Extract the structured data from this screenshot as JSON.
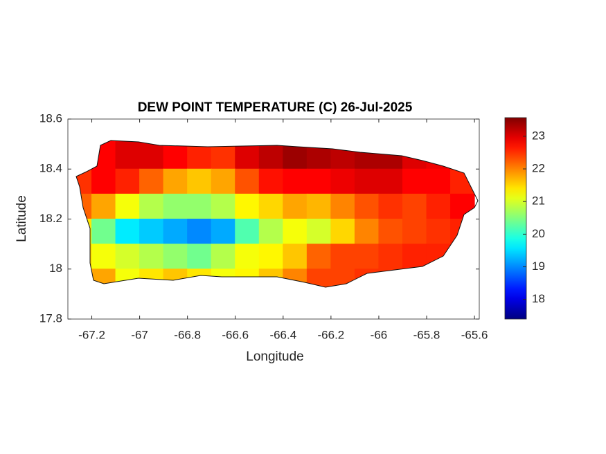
{
  "chart_data": {
    "type": "heatmap",
    "title": "DEW POINT TEMPERATURE (C) 26-Jul-2025",
    "xlabel": "Longitude",
    "ylabel": "Latitude",
    "xlim": [
      -67.3,
      -65.58
    ],
    "ylim": [
      17.8,
      18.6
    ],
    "xticks": [
      -67.2,
      -67,
      -66.8,
      -66.6,
      -66.4,
      -66.2,
      -66,
      -65.8,
      -65.6
    ],
    "yticks": [
      17.8,
      18,
      18.2,
      18.4,
      18.6
    ],
    "x": [
      -67.25,
      -67.15,
      -67.05,
      -66.95,
      -66.85,
      -66.75,
      -66.65,
      -66.55,
      -66.45,
      -66.35,
      -66.25,
      -66.15,
      -66.05,
      -65.95,
      -65.85,
      -65.75,
      -65.65
    ],
    "y": [
      18.45,
      18.35,
      18.25,
      18.15,
      18.05,
      17.95
    ],
    "values": [
      [
        null,
        22.8,
        23,
        23,
        22.8,
        22.6,
        22.5,
        23,
        23.2,
        23.4,
        23.3,
        23.2,
        23.3,
        23.3,
        23,
        22.9,
        22.8
      ],
      [
        22.5,
        22.8,
        22.6,
        22.2,
        21.8,
        21.6,
        21.8,
        22.3,
        22.7,
        22.8,
        22.8,
        22.9,
        23,
        23,
        22.8,
        22.8,
        22.6
      ],
      [
        22.2,
        21.8,
        21.2,
        20.8,
        20.6,
        20.6,
        20.8,
        21.3,
        21.5,
        21.8,
        21.7,
        22,
        22.3,
        22.5,
        22.4,
        22.6,
        22.8
      ],
      [
        21.4,
        20.4,
        19.6,
        19.4,
        19.2,
        19,
        19.2,
        20.2,
        20.8,
        21.2,
        21,
        21.5,
        22,
        22.3,
        22.4,
        22.5,
        22.6
      ],
      [
        21.6,
        21.2,
        21,
        20.8,
        20.6,
        20.4,
        20.8,
        21.2,
        21.3,
        21.6,
        22.2,
        22.4,
        22.4,
        22.5,
        22.6,
        22.6,
        null
      ],
      [
        null,
        21.8,
        21.2,
        21.4,
        21.6,
        21.4,
        21.2,
        21.3,
        21.6,
        22,
        22.4,
        22.4,
        22.5,
        22.5,
        null,
        null,
        null
      ]
    ],
    "colormap": "jet",
    "clim": [
      17.4,
      23.57
    ],
    "cticks": [
      18,
      19,
      20,
      21,
      22,
      23
    ]
  }
}
